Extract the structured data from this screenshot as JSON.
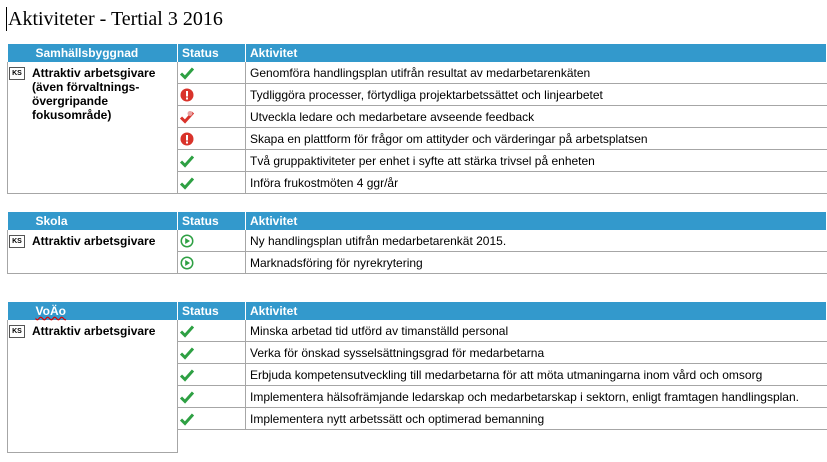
{
  "title": "Aktiviteter - Tertial 3 2016",
  "sections": [
    {
      "name": "Samhällsbyggnad",
      "status_header": "Status",
      "activity_header": "Aktivitet",
      "goal_icon": "KS",
      "goal": "Attraktiv arbetsgivare (även förvaltnings-övergripande fokusområde)",
      "activities": [
        "Genomföra handlingsplan utifrån resultat av medarbetarenkäten",
        "Tydliggöra processer, förtydliga projektarbetssättet och linjearbetet",
        "Utveckla ledare och medarbetare avseende feedback",
        "Skapa en plattform för frågor om attityder och värderingar på arbetsplatsen",
        "Två gruppaktiviteter per enhet i syfte att stärka trivsel på enheten",
        "Införa frukostmöten 4 ggr/år"
      ]
    },
    {
      "name": "Skola",
      "status_header": "Status",
      "activity_header": "Aktivitet",
      "goal_icon": "KS",
      "goal": "Attraktiv arbetsgivare",
      "activities": [
        "Ny handlingsplan utifrån medarbetarenkät 2015.",
        "Marknadsföring för nyrekrytering"
      ]
    },
    {
      "name": "VoÄo",
      "status_header": "Status",
      "activity_header": "Aktivitet",
      "goal_icon": "KS",
      "goal": "Attraktiv arbetsgivare",
      "activities": [
        "Minska arbetad tid utförd av timanställd personal",
        "Verka för önskad sysselsättningsgrad för medarbetarna",
        "Erbjuda kompetensutveckling till medarbetarna för att möta utmaningarna inom vård och omsorg",
        "Implementera hälsofrämjande ledarskap och medarbetarskap i sektorn, enligt framtagen handlingsplan.",
        "Implementera nytt arbetssätt och optimerad bemanning"
      ]
    }
  ]
}
